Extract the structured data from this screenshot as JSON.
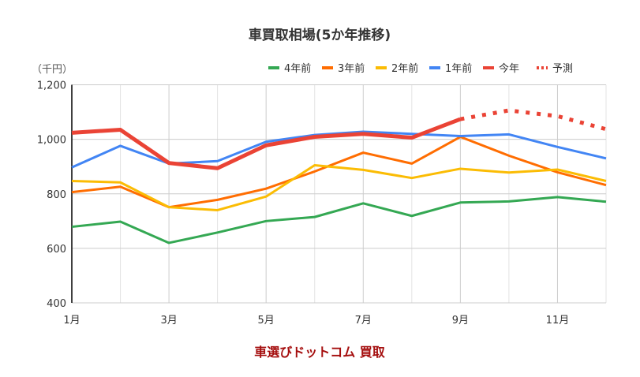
{
  "chart_data": {
    "type": "line",
    "title": "車買取相場(5か年推移)",
    "unit_label": "（千円）",
    "footer": "車選びドットコム 買取",
    "x": [
      "1月",
      "2月",
      "3月",
      "4月",
      "5月",
      "6月",
      "7月",
      "8月",
      "9月",
      "10月",
      "11月",
      "12月"
    ],
    "x_tick_labels": [
      "1月",
      "3月",
      "5月",
      "7月",
      "9月",
      "11月"
    ],
    "y_tick_labels": [
      "400",
      "600",
      "800",
      "1,000",
      "1,200"
    ],
    "ylim": [
      400,
      1200
    ],
    "grid": true,
    "legend_position": "top-right",
    "series": [
      {
        "name": "4年前",
        "color": "#34a853",
        "values": [
          679,
          698,
          620,
          658,
          700,
          715,
          765,
          719,
          768,
          772,
          788,
          771
        ]
      },
      {
        "name": "3年前",
        "color": "#ff6d01",
        "values": [
          806,
          826,
          751,
          778,
          819,
          882,
          951,
          911,
          1009,
          940,
          879,
          832
        ]
      },
      {
        "name": "2年前",
        "color": "#fbbc04",
        "values": [
          847,
          842,
          751,
          740,
          790,
          905,
          888,
          858,
          892,
          878,
          889,
          847
        ]
      },
      {
        "name": "1年前",
        "color": "#4285f4",
        "values": [
          897,
          976,
          911,
          920,
          991,
          1016,
          1028,
          1020,
          1012,
          1018,
          972,
          930
        ]
      },
      {
        "name": "今年",
        "color": "#ea4335",
        "values": [
          1024,
          1035,
          913,
          894,
          978,
          1009,
          1020,
          1006,
          1074,
          null,
          null,
          null
        ]
      },
      {
        "name": "予測",
        "color": "#ea4335",
        "dashed": true,
        "values": [
          null,
          null,
          null,
          null,
          null,
          null,
          null,
          null,
          1074,
          1106,
          1085,
          1037
        ]
      }
    ]
  }
}
